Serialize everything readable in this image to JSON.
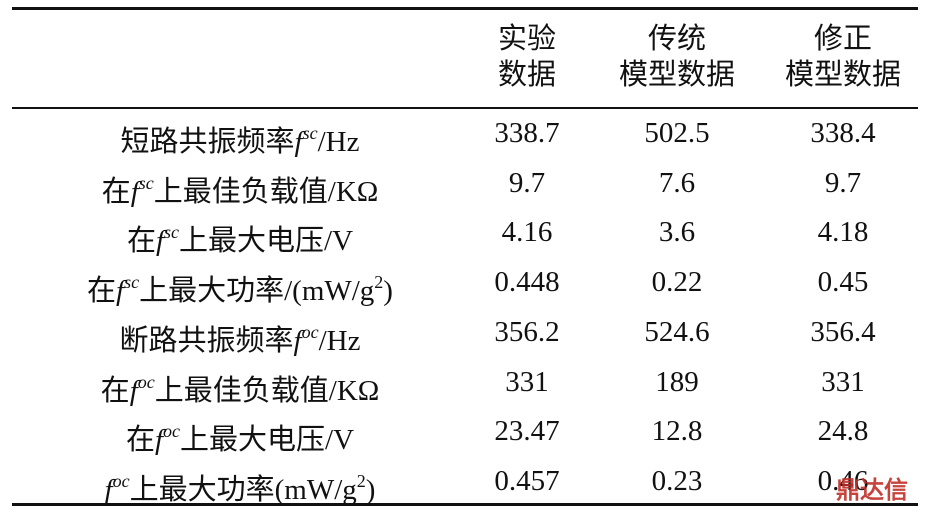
{
  "table": {
    "header": [
      [],
      [
        "实验",
        "数据"
      ],
      [
        "传统",
        "模型数据"
      ],
      [
        "修正",
        "模型数据"
      ]
    ],
    "rows": [
      {
        "label": [
          {
            "text": "短路共振频率",
            "style": "normal"
          },
          {
            "text": "f",
            "style": "italic"
          },
          {
            "text": "sc",
            "style": "sup"
          },
          {
            "text": "/Hz",
            "style": "normal"
          }
        ],
        "values": [
          "338.7",
          "502.5",
          "338.4"
        ]
      },
      {
        "label": [
          {
            "text": "在",
            "style": "normal"
          },
          {
            "text": "f",
            "style": "italic"
          },
          {
            "text": "sc",
            "style": "sup"
          },
          {
            "text": "上最佳负载值/KΩ",
            "style": "normal"
          }
        ],
        "values": [
          "9.7",
          "7.6",
          "9.7"
        ]
      },
      {
        "label": [
          {
            "text": "在",
            "style": "normal"
          },
          {
            "text": "f",
            "style": "italic"
          },
          {
            "text": "sc",
            "style": "sup"
          },
          {
            "text": "上最大电压/V",
            "style": "normal"
          }
        ],
        "values": [
          "4.16",
          "3.6",
          "4.18"
        ]
      },
      {
        "label": [
          {
            "text": "在",
            "style": "normal"
          },
          {
            "text": "f",
            "style": "italic"
          },
          {
            "text": "sc",
            "style": "sup"
          },
          {
            "text": "上最大功率/(mW/g",
            "style": "normal"
          },
          {
            "text": "2",
            "style": "sup"
          },
          {
            "text": ")",
            "style": "normal"
          }
        ],
        "values": [
          "0.448",
          "0.22",
          "0.45"
        ]
      },
      {
        "label": [
          {
            "text": "断路共振频率",
            "style": "normal"
          },
          {
            "text": "f",
            "style": "italic"
          },
          {
            "text": "oc",
            "style": "sup"
          },
          {
            "text": "/Hz",
            "style": "normal"
          }
        ],
        "values": [
          "356.2",
          "524.6",
          "356.4"
        ]
      },
      {
        "label": [
          {
            "text": "在",
            "style": "normal"
          },
          {
            "text": "f",
            "style": "italic"
          },
          {
            "text": "oc",
            "style": "sup"
          },
          {
            "text": "上最佳负载值/KΩ",
            "style": "normal"
          }
        ],
        "values": [
          "331",
          "189",
          "331"
        ]
      },
      {
        "label": [
          {
            "text": "在",
            "style": "normal"
          },
          {
            "text": "f",
            "style": "italic"
          },
          {
            "text": "oc",
            "style": "sup"
          },
          {
            "text": "上最大电压/V",
            "style": "normal"
          }
        ],
        "values": [
          "23.47",
          "12.8",
          "24.8"
        ]
      },
      {
        "label": [
          {
            "text": "f",
            "style": "italic"
          },
          {
            "text": "oc",
            "style": "sup"
          },
          {
            "text": "上最大功率(mW/g",
            "style": "normal"
          },
          {
            "text": "2",
            "style": "sup"
          },
          {
            "text": ")",
            "style": "normal"
          }
        ],
        "values": [
          "0.457",
          "0.23",
          "0.46"
        ]
      }
    ],
    "watermark": "鼎达信"
  }
}
